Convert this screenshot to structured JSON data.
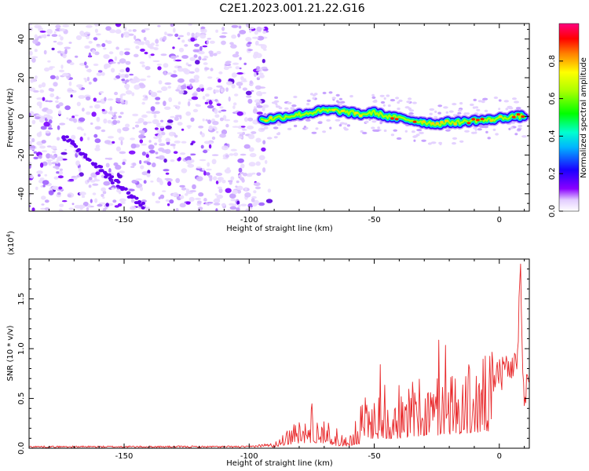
{
  "title": "C2E1.2023.001.21.22.G16",
  "colors": {
    "snr_line": "#e8282a",
    "spectrum_low": "#ffffff",
    "spectrum_purple": "#7a00ff",
    "spectrum_blue": "#0000ff",
    "spectrum_cyan": "#00e0ff",
    "spectrum_green": "#00ff00",
    "spectrum_yellow": "#ffff00",
    "spectrum_red": "#ff0000",
    "spectrum_high": "#ff0080"
  },
  "chart_data": [
    {
      "type": "heatmap",
      "title": "",
      "xlabel": "Height of straight line (km)",
      "ylabel": "Frequency (Hz)",
      "xlim": [
        -188,
        12
      ],
      "ylim": [
        -49,
        48
      ],
      "xticks": [
        -150,
        -100,
        -50,
        0
      ],
      "xtick_labels": [
        "-150",
        "-100",
        "-50",
        "0"
      ],
      "yticks": [
        -40,
        -20,
        0,
        20,
        40
      ],
      "ytick_labels": [
        "-40",
        "-20",
        "0",
        "20",
        "40"
      ],
      "noise_region_x": [
        -188,
        -93
      ],
      "signal_track": {
        "x": [
          -95,
          -90,
          -85,
          -80,
          -75,
          -70,
          -65,
          -60,
          -55,
          -50,
          -45,
          -40,
          -35,
          -30,
          -25,
          -20,
          -15,
          -10,
          -5,
          0,
          5,
          10
        ],
        "y": [
          -2,
          -1,
          0,
          1,
          2,
          3,
          3,
          2,
          1,
          2,
          0,
          -1,
          -2,
          -3,
          -4,
          -3,
          -3,
          -2,
          -2,
          -1,
          0,
          0
        ]
      },
      "colorbar": {
        "label": "Normalized spectral amplitude",
        "range": [
          0,
          1
        ],
        "ticks": [
          0.0,
          0.2,
          0.4,
          0.6,
          0.8
        ],
        "tick_labels": [
          "0.0",
          "0.2",
          "0.4",
          "0.6",
          "0.8"
        ]
      }
    },
    {
      "type": "line",
      "title": "",
      "xlabel": "Height of straight line (km)",
      "ylabel": "SNR (10 * v/v)",
      "y_multiplier": "(x10",
      "y_multiplier_exp": "4",
      "y_multiplier_close": ")",
      "xlim": [
        -188,
        12
      ],
      "ylim": [
        0,
        1.9
      ],
      "xticks": [
        -150,
        -100,
        -50,
        0
      ],
      "xtick_labels": [
        "-150",
        "-100",
        "-50",
        "0"
      ],
      "yticks": [
        0.0,
        0.5,
        1.0,
        1.5
      ],
      "ytick_labels": [
        "0.0",
        "0.5",
        "1.0",
        "1.5"
      ],
      "envelope": {
        "x": [
          -188,
          -100,
          -90,
          -85,
          -80,
          -75,
          -70,
          -65,
          -60,
          -56,
          -55,
          -50,
          -45,
          -40,
          -35,
          -30,
          -25,
          -20,
          -15,
          -10,
          -5,
          0,
          3,
          7,
          8.5,
          9,
          10,
          12
        ],
        "y": [
          0.02,
          0.02,
          0.05,
          0.18,
          0.25,
          0.28,
          0.26,
          0.12,
          0.1,
          0.2,
          0.45,
          0.5,
          0.45,
          0.5,
          0.55,
          0.6,
          0.65,
          0.7,
          0.72,
          0.75,
          0.8,
          0.9,
          0.9,
          1.0,
          1.85,
          1.1,
          0.6,
          0.85
        ]
      }
    }
  ]
}
